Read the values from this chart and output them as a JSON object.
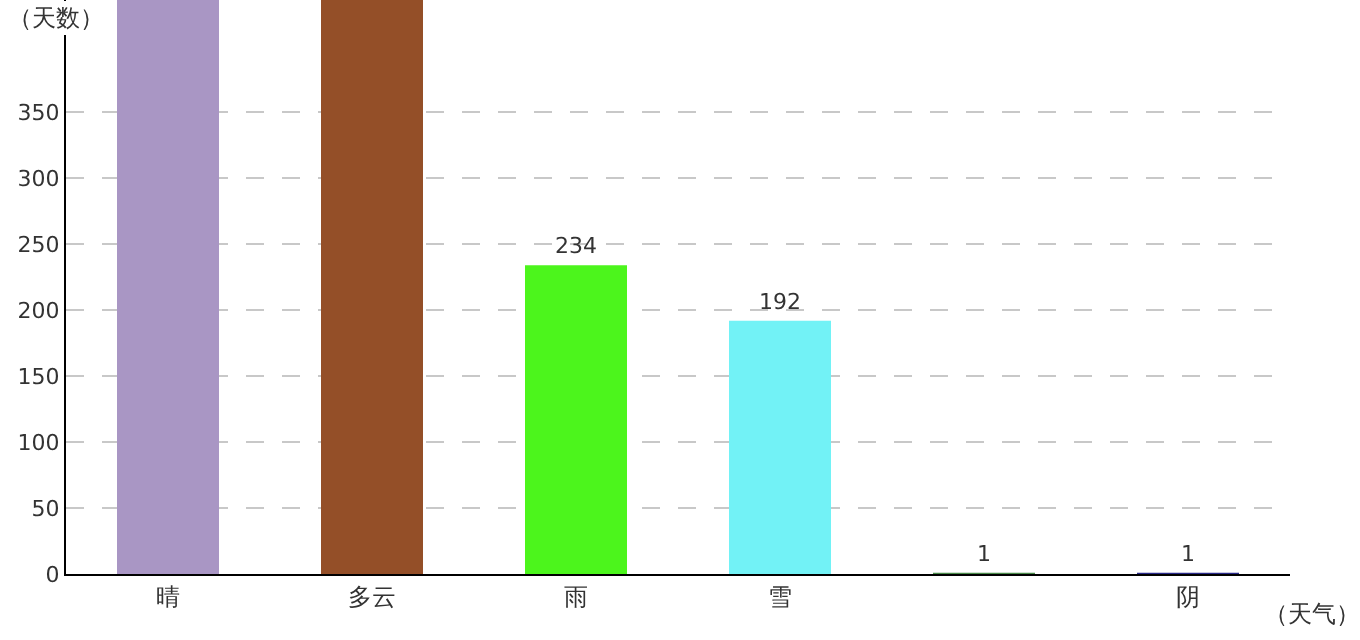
{
  "chart_data": {
    "type": "bar",
    "xlabel": "（天气）",
    "ylabel": "（天数）",
    "categories": [
      "晴",
      "多云",
      "雨",
      "雪",
      null,
      "阴"
    ],
    "values": [
      435,
      435,
      234,
      192,
      1,
      1
    ],
    "colors": [
      "#a996c4",
      "#944f28",
      "#4cf51c",
      "#72f2f6",
      "#4a8a4a",
      "#2a2a8a"
    ],
    "value_labels": [
      null,
      null,
      "234",
      "192",
      "1",
      "1"
    ],
    "ylim": [
      0,
      435
    ],
    "yticks": [
      0,
      50,
      100,
      150,
      200,
      250,
      300,
      350
    ],
    "grid": "y",
    "legend": false
  }
}
